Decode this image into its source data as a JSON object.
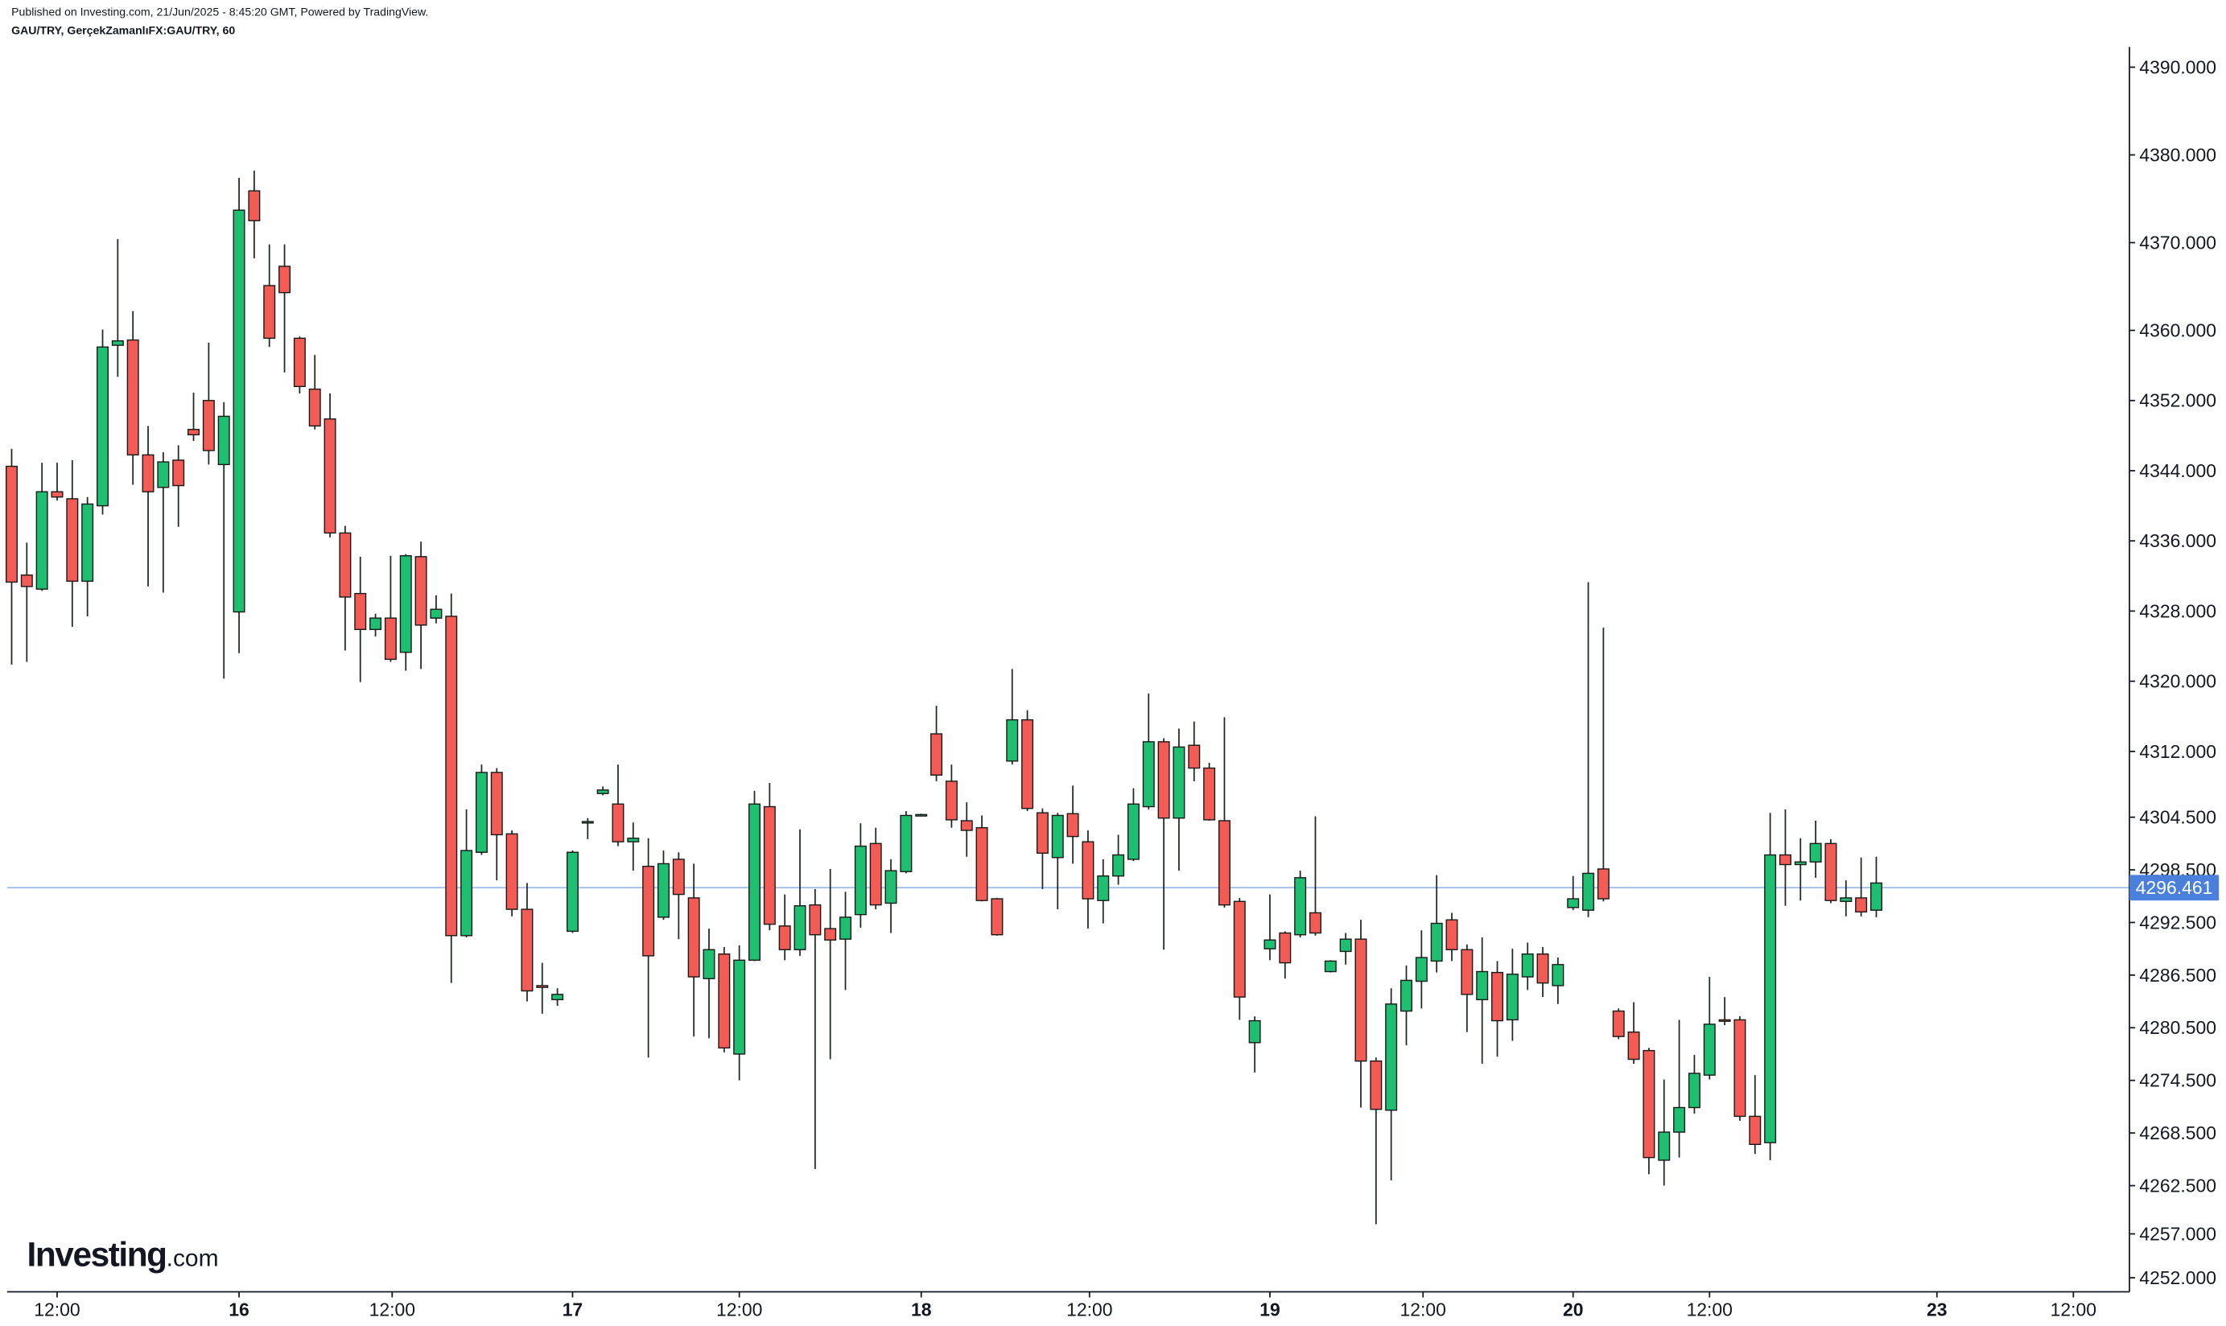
{
  "header": {
    "published": "Published on Investing.com, 21/Jun/2025 - 8:45:20 GMT, Powered by TradingView.",
    "symbol": "GAU/TRY, GerçekZamanlıFX:GAU/TRY, 60"
  },
  "logo": {
    "brand": "Investing",
    "suffix": ".com"
  },
  "chart_data": {
    "type": "candlestick",
    "up_color": "#1fbf72",
    "down_color": "#f25c54",
    "last_price": {
      "value": 4296.461,
      "label": "4296.461"
    },
    "last_price_color": "#4a7fdb",
    "ylim": [
      4250.4,
      4392.3
    ],
    "yticks": [
      {
        "value": 4390,
        "label": "4390.000"
      },
      {
        "value": 4380,
        "label": "4380.000"
      },
      {
        "value": 4370,
        "label": "4370.000"
      },
      {
        "value": 4360,
        "label": "4360.000"
      },
      {
        "value": 4352,
        "label": "4352.000"
      },
      {
        "value": 4344,
        "label": "4344.000"
      },
      {
        "value": 4336,
        "label": "4336.000"
      },
      {
        "value": 4328,
        "label": "4328.000"
      },
      {
        "value": 4320,
        "label": "4320.000"
      },
      {
        "value": 4312,
        "label": "4312.000"
      },
      {
        "value": 4304.5,
        "label": "4304.500"
      },
      {
        "value": 4298.5,
        "label": "4298.500"
      },
      {
        "value": 4292.5,
        "label": "4292.500"
      },
      {
        "value": 4286.5,
        "label": "4286.500"
      },
      {
        "value": 4280.5,
        "label": "4280.500"
      },
      {
        "value": 4274.5,
        "label": "4274.500"
      },
      {
        "value": 4268.5,
        "label": "4268.500"
      },
      {
        "value": 4262.5,
        "label": "4262.500"
      },
      {
        "value": 4257,
        "label": "4257.000"
      },
      {
        "value": 4252,
        "label": "4252.000"
      }
    ],
    "xlim": [
      -0.3,
      139.7
    ],
    "xticks": [
      {
        "value": 3,
        "label": "12:00"
      },
      {
        "value": 15,
        "label": "16"
      },
      {
        "value": 25.1,
        "label": "12:00"
      },
      {
        "value": 37,
        "label": "17"
      },
      {
        "value": 48,
        "label": "12:00"
      },
      {
        "value": 60,
        "label": "18"
      },
      {
        "value": 71.1,
        "label": "12:00"
      },
      {
        "value": 83,
        "label": "19"
      },
      {
        "value": 93.1,
        "label": "12:00"
      },
      {
        "value": 103,
        "label": "20"
      },
      {
        "value": 112,
        "label": "12:00"
      },
      {
        "value": 127,
        "label": "23"
      },
      {
        "value": 136,
        "label": "12:00"
      }
    ],
    "ohlc": [
      [
        4344.5,
        4346.5,
        4321.9,
        4331.3
      ],
      [
        4332.1,
        4335.8,
        4322.2,
        4330.8
      ],
      [
        4330.5,
        4344.9,
        4330.3,
        4341.6
      ],
      [
        4341.6,
        4344.9,
        4340.6,
        4341.0
      ],
      [
        4340.8,
        4345.2,
        4326.2,
        4331.4
      ],
      [
        4331.4,
        4341.0,
        4327.4,
        4340.2
      ],
      [
        4340.0,
        4360.1,
        4339.0,
        4358.1
      ],
      [
        4358.3,
        4370.4,
        4354.7,
        4358.8
      ],
      [
        4358.9,
        4362.2,
        4342.4,
        4345.8
      ],
      [
        4345.8,
        4349.1,
        4330.8,
        4341.6
      ],
      [
        4342.1,
        4346.1,
        4330.1,
        4345.0
      ],
      [
        4345.2,
        4346.9,
        4337.6,
        4342.3
      ],
      [
        4348.7,
        4352.9,
        4347.4,
        4348.1
      ],
      [
        4352.0,
        4358.6,
        4344.7,
        4346.3
      ],
      [
        4344.7,
        4351.8,
        4320.3,
        4350.2
      ],
      [
        4327.9,
        4377.4,
        4323.2,
        4373.7
      ],
      [
        4375.9,
        4378.2,
        4368.2,
        4372.5
      ],
      [
        4365.1,
        4369.8,
        4358.1,
        4359.1
      ],
      [
        4367.3,
        4369.8,
        4355.2,
        4364.3
      ],
      [
        4359.1,
        4359.3,
        4352.8,
        4353.6
      ],
      [
        4353.3,
        4357.2,
        4348.7,
        4349.1
      ],
      [
        4349.9,
        4352.8,
        4336.4,
        4336.9
      ],
      [
        4336.9,
        4337.7,
        4323.5,
        4329.6
      ],
      [
        4330.0,
        4334.2,
        4319.9,
        4325.9
      ],
      [
        4325.9,
        4327.7,
        4325.1,
        4327.2
      ],
      [
        4327.2,
        4334.3,
        4322.2,
        4322.5
      ],
      [
        4323.3,
        4334.5,
        4321.2,
        4334.3
      ],
      [
        4334.2,
        4335.9,
        4321.4,
        4326.4
      ],
      [
        4327.2,
        4329.8,
        4326.6,
        4328.2
      ],
      [
        4327.4,
        4330.0,
        4285.6,
        4291.0
      ],
      [
        4291.0,
        4305.4,
        4290.8,
        4300.7
      ],
      [
        4300.5,
        4310.5,
        4300.2,
        4309.6
      ],
      [
        4309.6,
        4310.1,
        4297.3,
        4302.5
      ],
      [
        4302.6,
        4303.0,
        4293.2,
        4294.0
      ],
      [
        4294.0,
        4297.0,
        4283.5,
        4284.7
      ],
      [
        4285.3,
        4287.9,
        4282.1,
        4285.1
      ],
      [
        4283.7,
        4285.0,
        4283.0,
        4284.3
      ],
      [
        4291.5,
        4300.7,
        4291.3,
        4300.5
      ],
      [
        4303.9,
        4304.4,
        4302.0,
        4304.0
      ],
      [
        4307.2,
        4308.0,
        4307.0,
        4307.6
      ],
      [
        4306.0,
        4310.5,
        4301.2,
        4301.7
      ],
      [
        4301.7,
        4303.9,
        4298.4,
        4302.1
      ],
      [
        4298.9,
        4302.1,
        4277.1,
        4288.7
      ],
      [
        4293.1,
        4300.7,
        4292.8,
        4299.2
      ],
      [
        4299.7,
        4300.5,
        4290.6,
        4295.7
      ],
      [
        4295.3,
        4299.2,
        4279.5,
        4286.3
      ],
      [
        4286.1,
        4291.8,
        4279.3,
        4289.4
      ],
      [
        4288.9,
        4289.7,
        4277.7,
        4278.2
      ],
      [
        4277.5,
        4289.9,
        4274.5,
        4288.2
      ],
      [
        4288.2,
        4307.5,
        4288.1,
        4306.0
      ],
      [
        4305.7,
        4308.4,
        4291.6,
        4292.3
      ],
      [
        4292.1,
        4295.7,
        4288.2,
        4289.4
      ],
      [
        4289.4,
        4303.1,
        4288.7,
        4294.4
      ],
      [
        4294.5,
        4296.3,
        4264.4,
        4291.1
      ],
      [
        4291.8,
        4298.6,
        4276.9,
        4290.5
      ],
      [
        4290.6,
        4296.0,
        4284.8,
        4293.1
      ],
      [
        4293.4,
        4303.8,
        4291.9,
        4301.2
      ],
      [
        4301.5,
        4303.3,
        4294.0,
        4294.5
      ],
      [
        4294.7,
        4299.7,
        4291.3,
        4298.4
      ],
      [
        4298.3,
        4305.2,
        4298.1,
        4304.7
      ],
      [
        4304.7,
        4304.9,
        4304.6,
        4304.8
      ],
      [
        4314.0,
        4317.2,
        4308.6,
        4309.3
      ],
      [
        4308.6,
        4310.5,
        4303.3,
        4304.2
      ],
      [
        4304.1,
        4306.2,
        4300.0,
        4303.0
      ],
      [
        4303.3,
        4304.7,
        4294.9,
        4295.0
      ],
      [
        4295.2,
        4295.3,
        4291.0,
        4291.1
      ],
      [
        4310.9,
        4321.4,
        4310.5,
        4315.6
      ],
      [
        4315.6,
        4316.7,
        4305.2,
        4305.5
      ],
      [
        4305.0,
        4305.5,
        4296.3,
        4300.4
      ],
      [
        4299.9,
        4305.0,
        4294.0,
        4304.7
      ],
      [
        4304.9,
        4308.1,
        4299.2,
        4302.3
      ],
      [
        4301.7,
        4303.0,
        4291.8,
        4295.2
      ],
      [
        4295.0,
        4299.7,
        4292.4,
        4297.8
      ],
      [
        4297.8,
        4302.5,
        4296.8,
        4300.2
      ],
      [
        4299.7,
        4307.8,
        4299.5,
        4306.0
      ],
      [
        4305.7,
        4318.6,
        4305.4,
        4313.1
      ],
      [
        4313.1,
        4313.5,
        4289.4,
        4304.4
      ],
      [
        4304.4,
        4314.6,
        4298.4,
        4312.5
      ],
      [
        4312.7,
        4315.4,
        4308.6,
        4310.1
      ],
      [
        4310.1,
        4310.7,
        4304.1,
        4304.2
      ],
      [
        4304.1,
        4315.9,
        4294.2,
        4294.5
      ],
      [
        4294.9,
        4295.3,
        4281.4,
        4284.0
      ],
      [
        4278.8,
        4281.8,
        4275.4,
        4281.3
      ],
      [
        4289.5,
        4295.7,
        4288.2,
        4290.5
      ],
      [
        4291.3,
        4291.5,
        4286.1,
        4287.9
      ],
      [
        4291.1,
        4298.4,
        4290.8,
        4297.6
      ],
      [
        4293.6,
        4304.6,
        4291.0,
        4291.3
      ],
      [
        4286.9,
        4288.2,
        4286.8,
        4288.1
      ],
      [
        4289.2,
        4291.3,
        4287.7,
        4290.6
      ],
      [
        4290.6,
        4292.8,
        4271.4,
        4276.7
      ],
      [
        4276.7,
        4277.1,
        4258.1,
        4271.2
      ],
      [
        4271.1,
        4285.0,
        4263.1,
        4283.2
      ],
      [
        4282.4,
        4287.6,
        4278.5,
        4285.9
      ],
      [
        4285.8,
        4291.6,
        4282.7,
        4288.5
      ],
      [
        4288.1,
        4297.9,
        4286.8,
        4292.4
      ],
      [
        4292.8,
        4293.6,
        4288.1,
        4289.4
      ],
      [
        4289.4,
        4290.0,
        4280.0,
        4284.3
      ],
      [
        4283.7,
        4290.8,
        4276.4,
        4286.9
      ],
      [
        4286.8,
        4288.1,
        4277.2,
        4281.3
      ],
      [
        4281.4,
        4289.5,
        4279.0,
        4286.6
      ],
      [
        4286.3,
        4290.2,
        4284.8,
        4288.9
      ],
      [
        4288.9,
        4289.7,
        4284.0,
        4285.6
      ],
      [
        4285.3,
        4288.5,
        4283.2,
        4287.7
      ],
      [
        4294.2,
        4297.8,
        4293.9,
        4295.2
      ],
      [
        4293.9,
        4331.3,
        4293.1,
        4298.1
      ],
      [
        4298.6,
        4326.1,
        4294.9,
        4295.2
      ],
      [
        4282.4,
        4282.7,
        4279.2,
        4279.5
      ],
      [
        4280.0,
        4283.4,
        4276.4,
        4276.9
      ],
      [
        4277.9,
        4278.2,
        4263.8,
        4265.7
      ],
      [
        4265.4,
        4274.6,
        4262.5,
        4268.6
      ],
      [
        4268.6,
        4281.4,
        4265.7,
        4271.4
      ],
      [
        4271.4,
        4277.4,
        4270.7,
        4275.3
      ],
      [
        4275.1,
        4286.3,
        4274.6,
        4280.9
      ],
      [
        4281.4,
        4284.0,
        4280.8,
        4281.3
      ],
      [
        4281.4,
        4281.8,
        4269.9,
        4270.4
      ],
      [
        4270.4,
        4275.1,
        4266.1,
        4267.2
      ],
      [
        4267.4,
        4305.0,
        4265.4,
        4300.2
      ],
      [
        4300.2,
        4305.4,
        4294.4,
        4299.1
      ],
      [
        4299.1,
        4302.1,
        4295.0,
        4299.4
      ],
      [
        4299.4,
        4304.1,
        4297.6,
        4301.5
      ],
      [
        4301.5,
        4302.0,
        4294.7,
        4295.0
      ],
      [
        4294.9,
        4297.3,
        4293.2,
        4295.3
      ],
      [
        4295.3,
        4299.9,
        4293.2,
        4293.7
      ],
      [
        4293.9,
        4300.0,
        4293.1,
        4297.0
      ]
    ]
  }
}
